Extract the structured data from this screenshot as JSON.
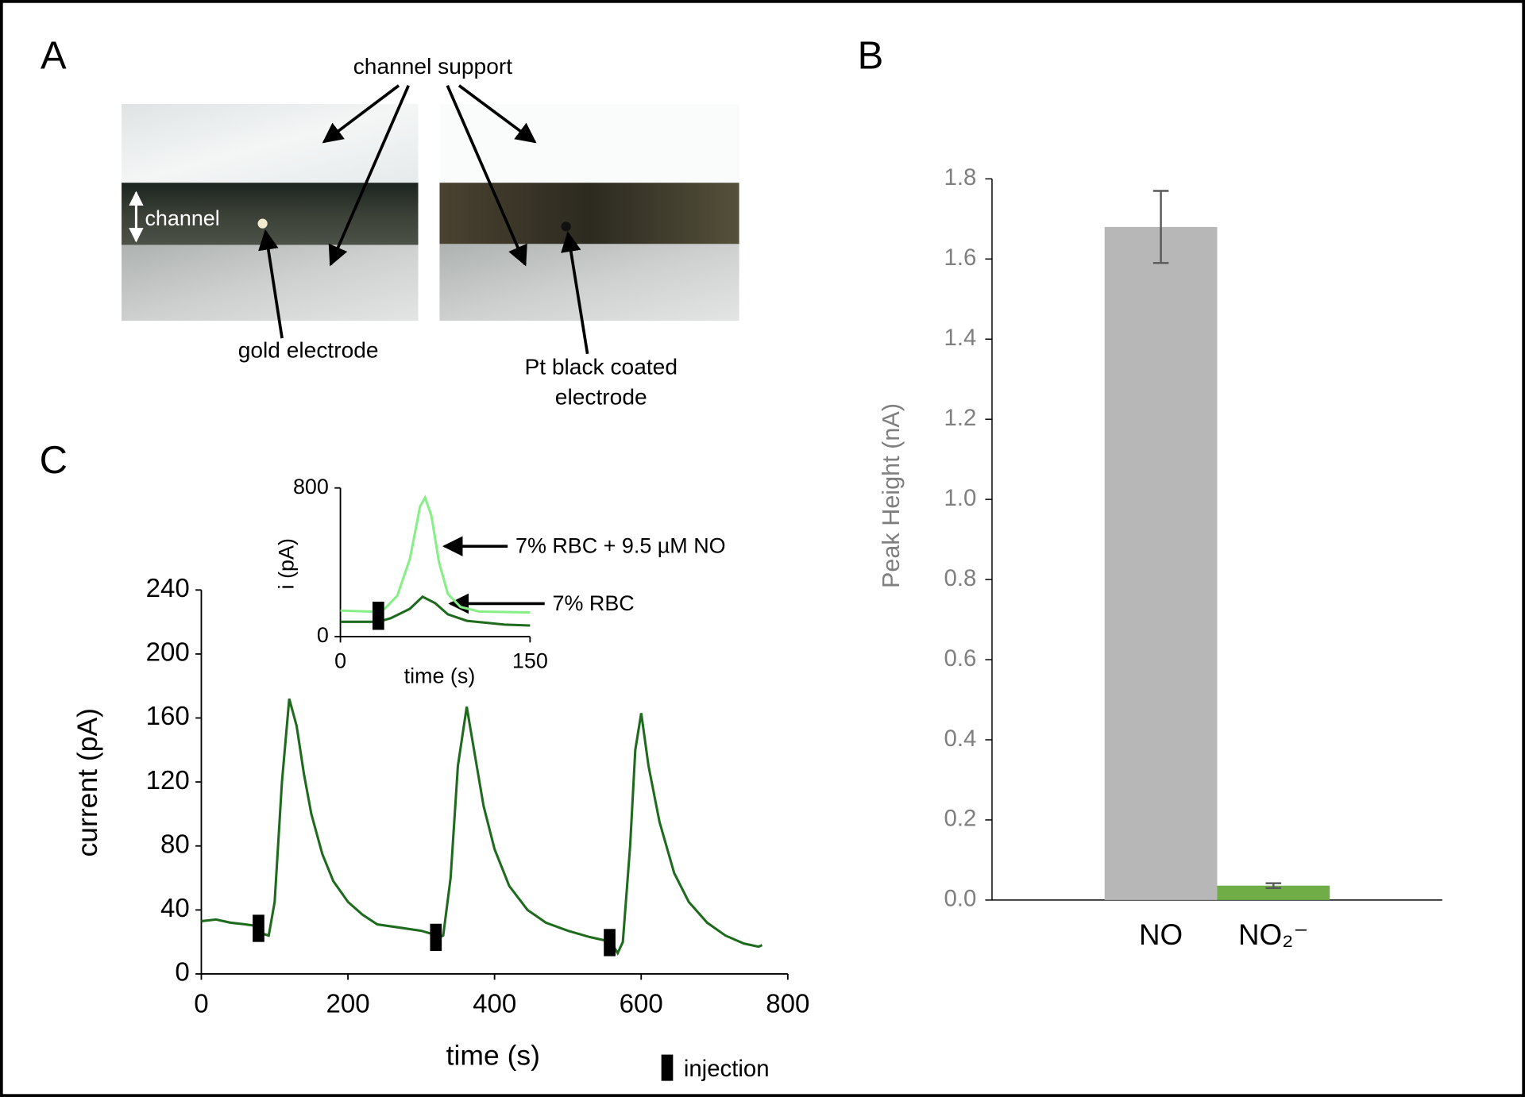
{
  "chart_data": [
    {
      "type": "image",
      "label": "A",
      "annotations": {
        "support": "channel support",
        "channel": "channel",
        "gold": "gold electrode",
        "pt": "Pt black coated electrode"
      }
    },
    {
      "type": "bar",
      "label": "B",
      "ylabel": "Peak Height (nA)",
      "categories": [
        "NO",
        "NO₂⁻"
      ],
      "values": [
        1.68,
        0.036
      ],
      "errors": [
        0.09,
        0.006
      ],
      "colors": [
        "#b7b7b7",
        "#70ad47"
      ],
      "ylim": [
        0,
        1.8
      ],
      "yticks": [
        {
          "value": 0,
          "label": "0.0"
        },
        0.2,
        0.4,
        0.6,
        0.8,
        {
          "value": 1,
          "label": "1.0"
        },
        1.2,
        1.4,
        1.6,
        1.8
      ]
    },
    {
      "type": "line",
      "label": "C",
      "xlabel": "time (s)",
      "ylabel": "current (pA)",
      "xlim": [
        0,
        800
      ],
      "ylim": [
        0,
        240
      ],
      "xticks": [
        0,
        200,
        400,
        600,
        800
      ],
      "yticks": [
        0,
        40,
        80,
        120,
        160,
        200,
        240
      ],
      "color": "#1e6b1e",
      "x": [
        0,
        20,
        40,
        60,
        75,
        85,
        92,
        100,
        110,
        120,
        130,
        140,
        150,
        165,
        180,
        200,
        220,
        240,
        270,
        300,
        315,
        322,
        330,
        340,
        350,
        362,
        372,
        385,
        400,
        420,
        445,
        470,
        500,
        530,
        550,
        560,
        568,
        575,
        585,
        592,
        600,
        610,
        625,
        645,
        665,
        690,
        715,
        740,
        760,
        765
      ],
      "values": [
        33,
        34,
        32,
        31,
        30,
        25,
        24,
        45,
        120,
        172,
        155,
        125,
        100,
        75,
        58,
        45,
        37,
        31,
        29,
        27,
        25,
        22,
        24,
        60,
        130,
        167,
        140,
        105,
        78,
        55,
        40,
        32,
        27,
        23,
        21,
        19,
        13,
        20,
        80,
        140,
        163,
        130,
        95,
        63,
        45,
        32,
        24,
        19,
        17,
        18
      ],
      "injections": [
        78,
        320,
        557
      ],
      "injection_label": "injection",
      "inset": {
        "xlim": [
          0,
          150
        ],
        "ylim": [
          0,
          800
        ],
        "xticks": [
          0,
          150
        ],
        "yticks": [
          0,
          800
        ],
        "xlabel": "time (s)",
        "ylabel": "i (pA)",
        "injection": 30,
        "series": [
          {
            "name": "7% RBC + 9.5 µM NO",
            "color": "#86ef86",
            "x": [
              0,
              25,
              35,
              45,
              55,
              63,
              67,
              72,
              78,
              85,
              95,
              110,
              150
            ],
            "values": [
              140,
              135,
              150,
              220,
              420,
              700,
              748,
              650,
              400,
              230,
              160,
              135,
              130
            ]
          },
          {
            "name": "7% RBC",
            "color": "#1e6b1e",
            "x": [
              0,
              30,
              40,
              55,
              65,
              75,
              85,
              100,
              130,
              150
            ],
            "values": [
              80,
              80,
              100,
              150,
              215,
              180,
              120,
              85,
              65,
              60
            ]
          }
        ]
      }
    }
  ]
}
